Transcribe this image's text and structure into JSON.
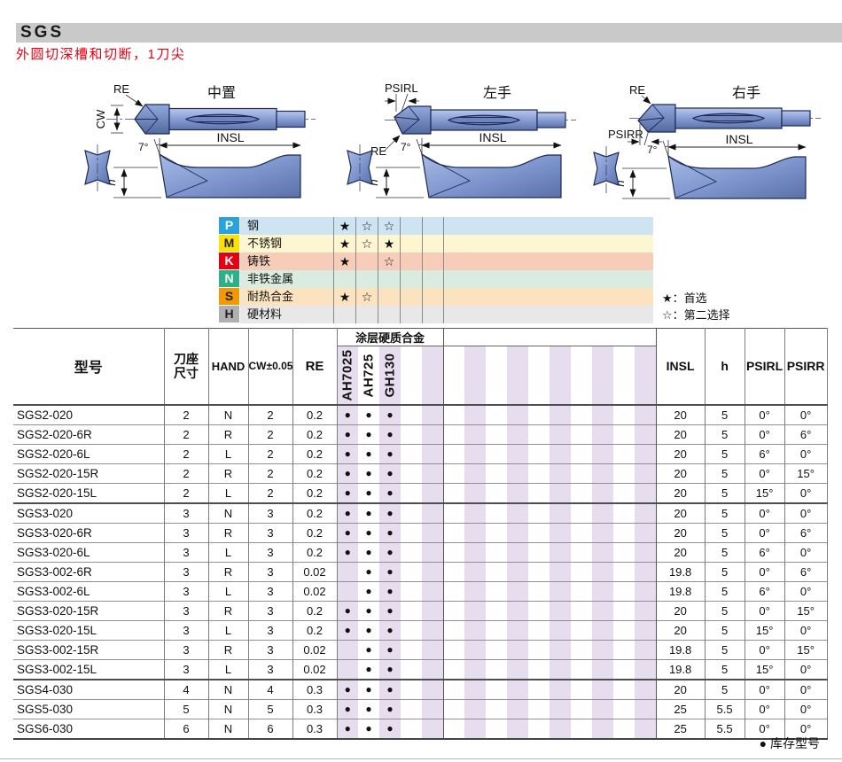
{
  "page": {
    "title": "SGS",
    "subtitle": "外圆切深槽和切断，1刀尖"
  },
  "colors": {
    "titlebar_gray": "#c9c9ca",
    "accent_red": "#e60012",
    "lavender_stripe": "#e6deee",
    "insert_blue_light": "#b9c7ea",
    "insert_blue_dark": "#5d73ab"
  },
  "diagrams": {
    "center": {
      "title": "中置",
      "re": "RE",
      "cw": "CW",
      "insl": "INSL",
      "angle": "7°",
      "h": "h"
    },
    "left": {
      "title": "左手",
      "psirl": "PSIRL",
      "re": "RE",
      "insl": "INSL",
      "angle": "7°",
      "h": "h"
    },
    "right": {
      "title": "右手",
      "re": "RE",
      "psirr": "PSIRR",
      "insl": "INSL",
      "angle": "7°",
      "h": "h"
    }
  },
  "material_table": {
    "rows": [
      {
        "code": "P",
        "name": "钢",
        "badge_color": "#29a3dc",
        "letter_color": "#ffffff",
        "row_color": "#cfe4f3",
        "ratings": [
          "★",
          "☆",
          "☆",
          "",
          ""
        ]
      },
      {
        "code": "M",
        "name": "不锈钢",
        "badge_color": "#ffe100",
        "letter_color": "#222222",
        "row_color": "#fdf6d0",
        "ratings": [
          "★",
          "☆",
          "★",
          "",
          ""
        ]
      },
      {
        "code": "K",
        "name": "铸铁",
        "badge_color": "#e60012",
        "letter_color": "#ffffff",
        "row_color": "#f7cdb9",
        "ratings": [
          "★",
          "",
          "☆",
          "",
          ""
        ]
      },
      {
        "code": "N",
        "name": "非铁金属",
        "badge_color": "#2cb086",
        "letter_color": "#ffffff",
        "row_color": "#d9ecdf",
        "ratings": [
          "",
          "",
          "",
          "",
          ""
        ]
      },
      {
        "code": "S",
        "name": "耐热合金",
        "badge_color": "#f39800",
        "letter_color": "#222222",
        "row_color": "#fbe3c0",
        "ratings": [
          "★",
          "☆",
          "",
          "",
          ""
        ]
      },
      {
        "code": "H",
        "name": "硬材料",
        "badge_color": "#b0b0b1",
        "letter_color": "#222222",
        "row_color": "#e8e8e9",
        "ratings": [
          "",
          "",
          "",
          "",
          ""
        ]
      }
    ],
    "legend": {
      "first_choice": "★：首选",
      "second_choice": "☆：第二选择"
    }
  },
  "main_table": {
    "headers": {
      "model": "型号",
      "seat1": "刀座",
      "seat2": "尺寸",
      "hand": "HAND",
      "cw": "CW±0.05",
      "re": "RE",
      "coating": "涂层硬质合金",
      "grades": [
        "AH7025",
        "AH725",
        "GH130"
      ],
      "insl": "INSL",
      "h": "h",
      "psirl": "PSIRL",
      "psirr": "PSIRR"
    },
    "rows": [
      {
        "model": "SGS2-020",
        "seat": "2",
        "hand": "N",
        "cw": "2",
        "re": "0.2",
        "g": [
          "●",
          "●",
          "●",
          "",
          ""
        ],
        "insl": "20",
        "h": "5",
        "psirl": "0°",
        "psirr": "0°"
      },
      {
        "model": "SGS2-020-6R",
        "seat": "2",
        "hand": "R",
        "cw": "2",
        "re": "0.2",
        "g": [
          "●",
          "●",
          "●",
          "",
          ""
        ],
        "insl": "20",
        "h": "5",
        "psirl": "0°",
        "psirr": "6°"
      },
      {
        "model": "SGS2-020-6L",
        "seat": "2",
        "hand": "L",
        "cw": "2",
        "re": "0.2",
        "g": [
          "●",
          "●",
          "●",
          "",
          ""
        ],
        "insl": "20",
        "h": "5",
        "psirl": "6°",
        "psirr": "0°"
      },
      {
        "model": "SGS2-020-15R",
        "seat": "2",
        "hand": "R",
        "cw": "2",
        "re": "0.2",
        "g": [
          "●",
          "●",
          "●",
          "",
          ""
        ],
        "insl": "20",
        "h": "5",
        "psirl": "0°",
        "psirr": "15°"
      },
      {
        "model": "SGS2-020-15L",
        "seat": "2",
        "hand": "L",
        "cw": "2",
        "re": "0.2",
        "g": [
          "●",
          "●",
          "●",
          "",
          ""
        ],
        "insl": "20",
        "h": "5",
        "psirl": "15°",
        "psirr": "0°"
      },
      {
        "model": "SGS3-020",
        "seat": "3",
        "hand": "N",
        "cw": "3",
        "re": "0.2",
        "g": [
          "●",
          "●",
          "●",
          "",
          ""
        ],
        "insl": "20",
        "h": "5",
        "psirl": "0°",
        "psirr": "0°",
        "grp": true
      },
      {
        "model": "SGS3-020-6R",
        "seat": "3",
        "hand": "R",
        "cw": "3",
        "re": "0.2",
        "g": [
          "●",
          "●",
          "●",
          "",
          ""
        ],
        "insl": "20",
        "h": "5",
        "psirl": "0°",
        "psirr": "6°"
      },
      {
        "model": "SGS3-020-6L",
        "seat": "3",
        "hand": "L",
        "cw": "3",
        "re": "0.2",
        "g": [
          "●",
          "●",
          "●",
          "",
          ""
        ],
        "insl": "20",
        "h": "5",
        "psirl": "6°",
        "psirr": "0°"
      },
      {
        "model": "SGS3-002-6R",
        "seat": "3",
        "hand": "R",
        "cw": "3",
        "re": "0.02",
        "g": [
          "",
          "●",
          "●",
          "",
          ""
        ],
        "insl": "19.8",
        "h": "5",
        "psirl": "0°",
        "psirr": "6°"
      },
      {
        "model": "SGS3-002-6L",
        "seat": "3",
        "hand": "L",
        "cw": "3",
        "re": "0.02",
        "g": [
          "",
          "●",
          "●",
          "",
          ""
        ],
        "insl": "19.8",
        "h": "5",
        "psirl": "6°",
        "psirr": "0°"
      },
      {
        "model": "SGS3-020-15R",
        "seat": "3",
        "hand": "R",
        "cw": "3",
        "re": "0.2",
        "g": [
          "●",
          "●",
          "●",
          "",
          ""
        ],
        "insl": "20",
        "h": "5",
        "psirl": "0°",
        "psirr": "15°"
      },
      {
        "model": "SGS3-020-15L",
        "seat": "3",
        "hand": "L",
        "cw": "3",
        "re": "0.2",
        "g": [
          "●",
          "●",
          "●",
          "",
          ""
        ],
        "insl": "20",
        "h": "5",
        "psirl": "15°",
        "psirr": "0°"
      },
      {
        "model": "SGS3-002-15R",
        "seat": "3",
        "hand": "R",
        "cw": "3",
        "re": "0.02",
        "g": [
          "",
          "●",
          "●",
          "",
          ""
        ],
        "insl": "19.8",
        "h": "5",
        "psirl": "0°",
        "psirr": "15°"
      },
      {
        "model": "SGS3-002-15L",
        "seat": "3",
        "hand": "L",
        "cw": "3",
        "re": "0.02",
        "g": [
          "",
          "●",
          "●",
          "",
          ""
        ],
        "insl": "19.8",
        "h": "5",
        "psirl": "15°",
        "psirr": "0°"
      },
      {
        "model": "SGS4-030",
        "seat": "4",
        "hand": "N",
        "cw": "4",
        "re": "0.3",
        "g": [
          "●",
          "●",
          "●",
          "",
          ""
        ],
        "insl": "20",
        "h": "5",
        "psirl": "0°",
        "psirr": "0°",
        "grp": true
      },
      {
        "model": "SGS5-030",
        "seat": "5",
        "hand": "N",
        "cw": "5",
        "re": "0.3",
        "g": [
          "●",
          "●",
          "●",
          "",
          ""
        ],
        "insl": "25",
        "h": "5.5",
        "psirl": "0°",
        "psirr": "0°"
      },
      {
        "model": "SGS6-030",
        "seat": "6",
        "hand": "N",
        "cw": "6",
        "re": "0.3",
        "g": [
          "●",
          "●",
          "●",
          "",
          ""
        ],
        "insl": "25",
        "h": "5.5",
        "psirl": "0°",
        "psirr": "0°"
      }
    ]
  },
  "footer": {
    "stock_legend": "● 库存型号"
  }
}
